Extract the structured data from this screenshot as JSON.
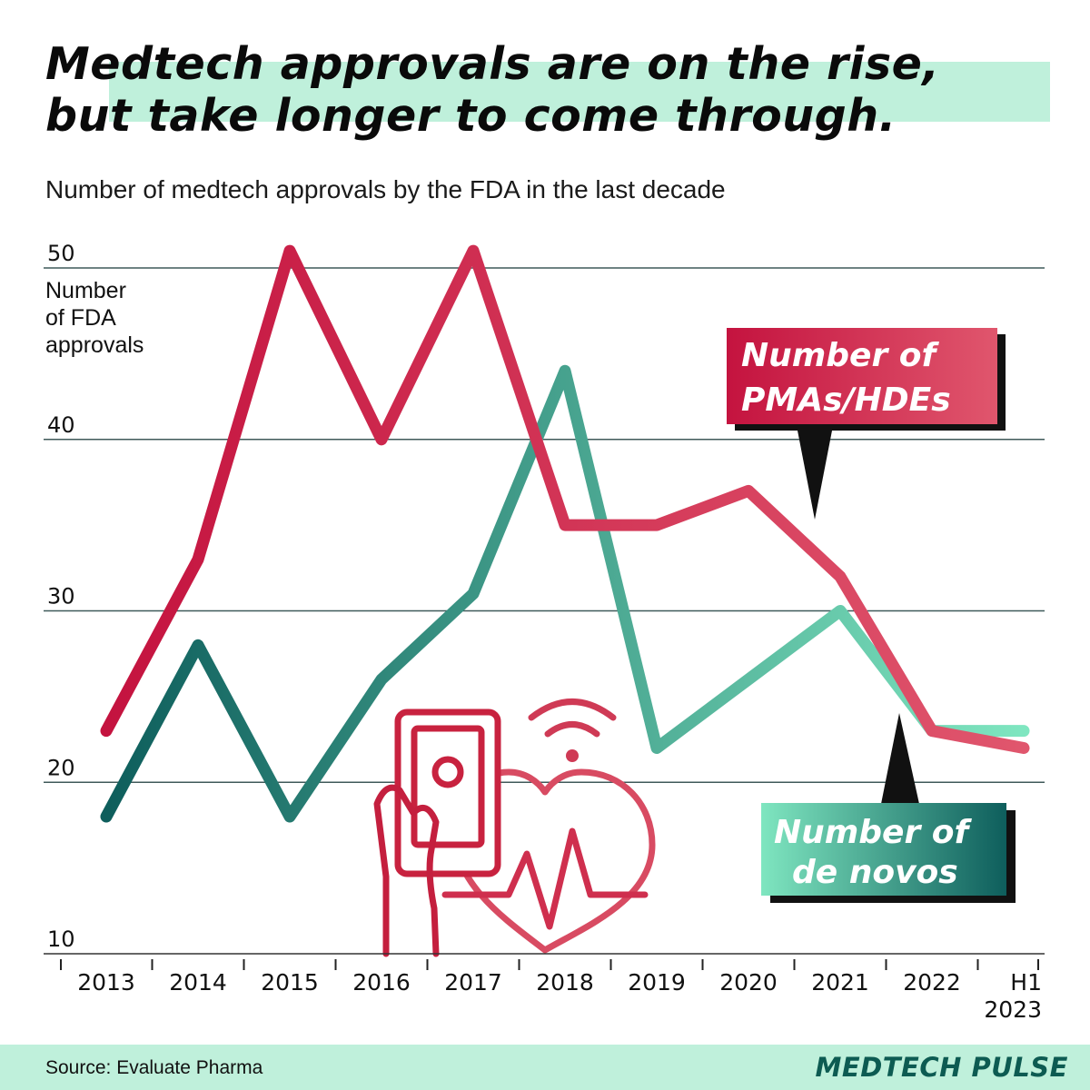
{
  "title": {
    "line1": "Medtech approvals are on the rise,",
    "line2": "but take longer to come through."
  },
  "subtitle": "Number of medtech approvals by the FDA in the last decade",
  "source": "Source: Evaluate Pharma",
  "brand": "MEDTECH PULSE",
  "colors": {
    "pma_dark": "#c4133f",
    "pma_light": "#e0566d",
    "denovo_dark": "#0e5e5c",
    "denovo_light": "#7fe6c0",
    "band": "#bff0db",
    "grid": "#3f5a5a"
  },
  "illustration": {
    "icon": "phone-heart-wifi-icon"
  },
  "chart_data": {
    "type": "line",
    "title": "Medtech approvals are on the rise, but take longer to come through.",
    "ylabel": "Number of FDA approvals",
    "ylabel_lines": [
      "Number",
      "of FDA",
      "approvals"
    ],
    "xlabel": "",
    "ylim": [
      10,
      50
    ],
    "yticks": [
      10,
      20,
      30,
      40,
      50
    ],
    "categories": [
      "2013",
      "2014",
      "2015",
      "2016",
      "2017",
      "2018",
      "2019",
      "2020",
      "2021",
      "2022",
      "H1 2023"
    ],
    "category_lines": [
      [
        "2013"
      ],
      [
        "2014"
      ],
      [
        "2015"
      ],
      [
        "2016"
      ],
      [
        "2017"
      ],
      [
        "2018"
      ],
      [
        "2019"
      ],
      [
        "2020"
      ],
      [
        "2021"
      ],
      [
        "2022"
      ],
      [
        "H1",
        "2023"
      ]
    ],
    "series": [
      {
        "name": "Number of PMAs/HDEs",
        "label_lines": [
          "Number of",
          "PMAs/HDEs"
        ],
        "values": [
          23,
          33,
          51,
          40,
          51,
          35,
          35,
          37,
          32,
          23,
          22
        ]
      },
      {
        "name": "Number of de novos",
        "label_lines": [
          "Number of",
          "de novos"
        ],
        "values": [
          18,
          28,
          18,
          26,
          31,
          44,
          22,
          26,
          30,
          23,
          23
        ]
      }
    ],
    "grid": true,
    "legend": "callout labels"
  }
}
